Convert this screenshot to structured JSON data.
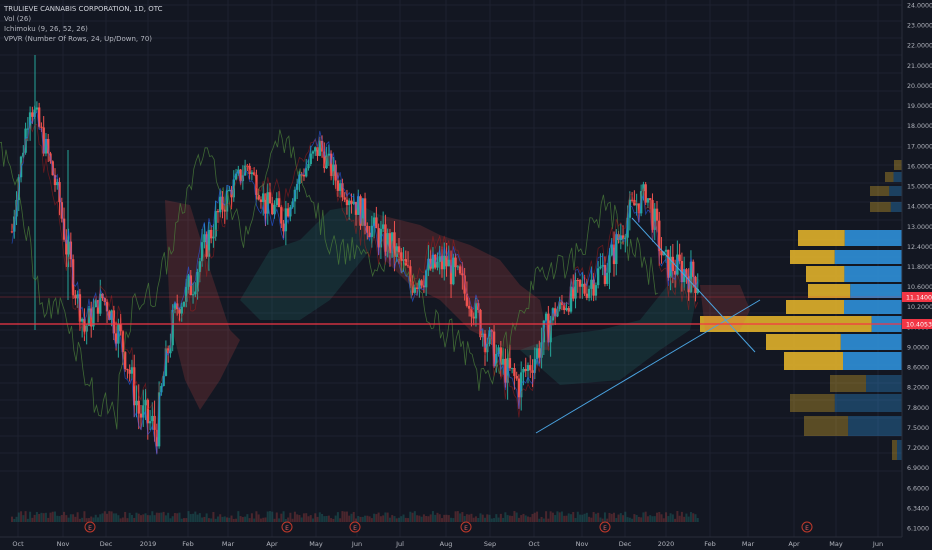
{
  "legend": {
    "title": "TRULIEVE CANNABIS CORPORATION, 1D, OTC",
    "volume": "Vol (26)",
    "ichimoku": "Ichimoku (9, 26, 52, 26)",
    "vpvr": "VPVR (Number Of Rows, 24, Up/Down, 70)"
  },
  "price_axis": {
    "ticks": [
      "24.0000",
      "23.0000",
      "22.0000",
      "21.0000",
      "20.0000",
      "19.0000",
      "18.0000",
      "17.0000",
      "16.0000",
      "15.0000",
      "14.0000",
      "13.0000",
      "12.4000",
      "11.8000",
      "10.6000",
      "10.2000",
      "9.4000",
      "9.0000",
      "8.6000",
      "8.2000",
      "7.8000",
      "7.5000",
      "7.2000",
      "6.9000",
      "6.6000",
      "6.3400",
      "6.1000"
    ],
    "current_price": "10.4053",
    "marker_price": "11.1400"
  },
  "time_axis": {
    "labels": [
      "Oct",
      "Nov",
      "Dec",
      "2019",
      "Feb",
      "Mar",
      "Apr",
      "May",
      "Jun",
      "Jul",
      "Aug",
      "Sep",
      "Oct",
      "Nov",
      "Dec",
      "2020",
      "Feb",
      "Mar",
      "Apr",
      "May",
      "Jun"
    ]
  },
  "earnings_marker": "E",
  "colors": {
    "background": "#131722",
    "up": "#26a69a",
    "down": "#ef5350",
    "current_line": "#f23645",
    "vpvr_up": "#2f8fd8",
    "vpvr_down": "#e0b02a",
    "trendline": "#4aa3e0"
  },
  "chart_data": {
    "type": "candlestick",
    "title": "TRULIEVE CANNABIS CORPORATION, 1D, OTC",
    "y_range": [
      6.0,
      24.0
    ],
    "y_scale": "log",
    "current_price": 10.4053,
    "resistance_level": 11.14,
    "candles": [
      {
        "x": "Oct",
        "close": 12.0
      },
      {
        "x": "Oct",
        "close": 18.5
      },
      {
        "x": "Oct",
        "close": 15.5
      },
      {
        "x": "Nov",
        "close": 11.5
      },
      {
        "x": "Nov",
        "close": 9.0
      },
      {
        "x": "Nov",
        "close": 10.0
      },
      {
        "x": "Dec",
        "close": 8.8
      },
      {
        "x": "Dec",
        "close": 7.3
      },
      {
        "x": "Dec",
        "close": 7.0
      },
      {
        "x": "2019",
        "close": 9.5
      },
      {
        "x": "2019",
        "close": 10.5
      },
      {
        "x": "Feb",
        "close": 12.0
      },
      {
        "x": "Feb",
        "close": 13.5
      },
      {
        "x": "Feb",
        "close": 15.0
      },
      {
        "x": "Mar",
        "close": 13.0
      },
      {
        "x": "Mar",
        "close": 12.5
      },
      {
        "x": "Apr",
        "close": 14.5
      },
      {
        "x": "Apr",
        "close": 16.0
      },
      {
        "x": "Apr",
        "close": 14.0
      },
      {
        "x": "May",
        "close": 13.0
      },
      {
        "x": "May",
        "close": 12.0
      },
      {
        "x": "Jun",
        "close": 11.5
      },
      {
        "x": "Jun",
        "close": 10.5
      },
      {
        "x": "Jul",
        "close": 10.8
      },
      {
        "x": "Jul",
        "close": 11.0
      },
      {
        "x": "Aug",
        "close": 10.2
      },
      {
        "x": "Aug",
        "close": 9.0
      },
      {
        "x": "Aug",
        "close": 8.2
      },
      {
        "x": "Sep",
        "close": 7.8
      },
      {
        "x": "Sep",
        "close": 8.5
      },
      {
        "x": "Oct",
        "close": 9.5
      },
      {
        "x": "Oct",
        "close": 10.0
      },
      {
        "x": "Nov",
        "close": 10.5
      },
      {
        "x": "Nov",
        "close": 11.0
      },
      {
        "x": "Dec",
        "close": 12.5
      },
      {
        "x": "Dec",
        "close": 13.5
      },
      {
        "x": "2020",
        "close": 11.0
      },
      {
        "x": "2020",
        "close": 10.8
      },
      {
        "x": "Feb",
        "close": 10.5
      }
    ]
  }
}
